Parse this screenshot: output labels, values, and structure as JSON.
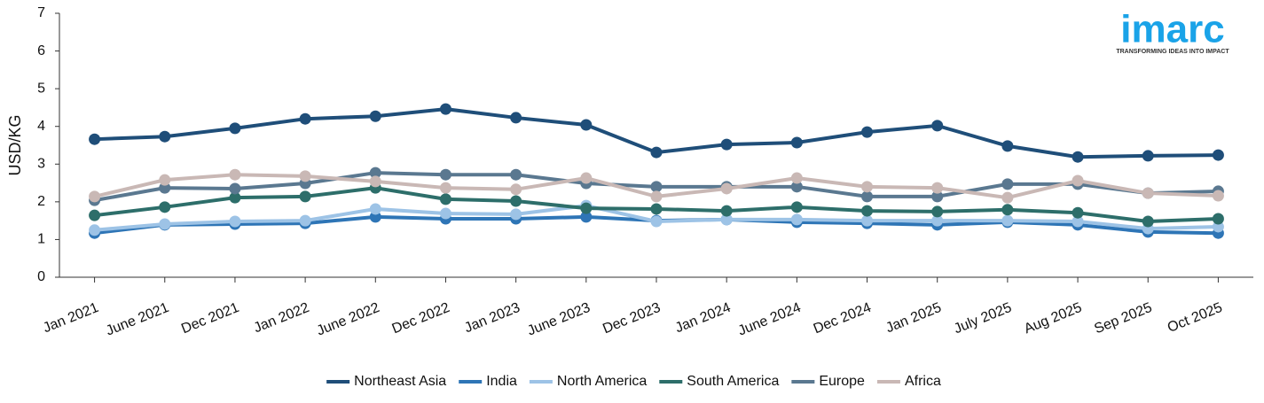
{
  "chart_data": {
    "type": "line",
    "y_label": "USD/KG",
    "categories": [
      "Jan 2021",
      "June 2021",
      "Dec 2021",
      "Jan 2022",
      "June 2022",
      "Dec 2022",
      "Jan 2023",
      "June 2023",
      "Dec 2023",
      "Jan 2024",
      "June 2024",
      "Dec 2024",
      "Jan 2025",
      "July 2025",
      "Aug 2025",
      "Sep 2025",
      "Oct 2025"
    ],
    "ylim": [
      0,
      7
    ],
    "yticks": [
      0,
      1,
      2,
      3,
      4,
      5,
      6,
      7
    ],
    "grid": false,
    "legend": "bottom",
    "series": [
      {
        "name": "Northeast Asia",
        "color": "#1f4e79",
        "values": [
          3.66,
          3.73,
          3.95,
          4.2,
          4.27,
          4.46,
          4.23,
          4.04,
          3.31,
          3.52,
          3.57,
          3.85,
          4.02,
          3.48,
          3.19,
          3.22,
          3.24
        ]
      },
      {
        "name": "India",
        "color": "#2e75b6",
        "values": [
          1.17,
          1.39,
          1.41,
          1.43,
          1.6,
          1.55,
          1.55,
          1.6,
          1.5,
          1.53,
          1.46,
          1.43,
          1.39,
          1.46,
          1.39,
          1.2,
          1.17
        ]
      },
      {
        "name": "North America",
        "color": "#9dc3e6",
        "values": [
          1.25,
          1.41,
          1.48,
          1.5,
          1.81,
          1.69,
          1.67,
          1.9,
          1.48,
          1.53,
          1.53,
          1.5,
          1.5,
          1.5,
          1.48,
          1.29,
          1.34
        ]
      },
      {
        "name": "South America",
        "color": "#2d6e6a",
        "values": [
          1.64,
          1.86,
          2.11,
          2.14,
          2.37,
          2.07,
          2.02,
          1.83,
          1.81,
          1.76,
          1.86,
          1.76,
          1.74,
          1.79,
          1.71,
          1.48,
          1.55
        ]
      },
      {
        "name": "Europe",
        "color": "#5a7890",
        "values": [
          2.04,
          2.37,
          2.35,
          2.49,
          2.77,
          2.72,
          2.72,
          2.49,
          2.4,
          2.4,
          2.4,
          2.14,
          2.14,
          2.47,
          2.47,
          2.23,
          2.28
        ]
      },
      {
        "name": "Africa",
        "color": "#c9b8b5",
        "values": [
          2.14,
          2.58,
          2.72,
          2.68,
          2.54,
          2.37,
          2.33,
          2.63,
          2.14,
          2.35,
          2.63,
          2.4,
          2.37,
          2.11,
          2.56,
          2.23,
          2.16
        ]
      }
    ]
  },
  "logo": {
    "name": "imarc",
    "tagline": "TRANSFORMING IDEAS INTO IMPACT"
  }
}
